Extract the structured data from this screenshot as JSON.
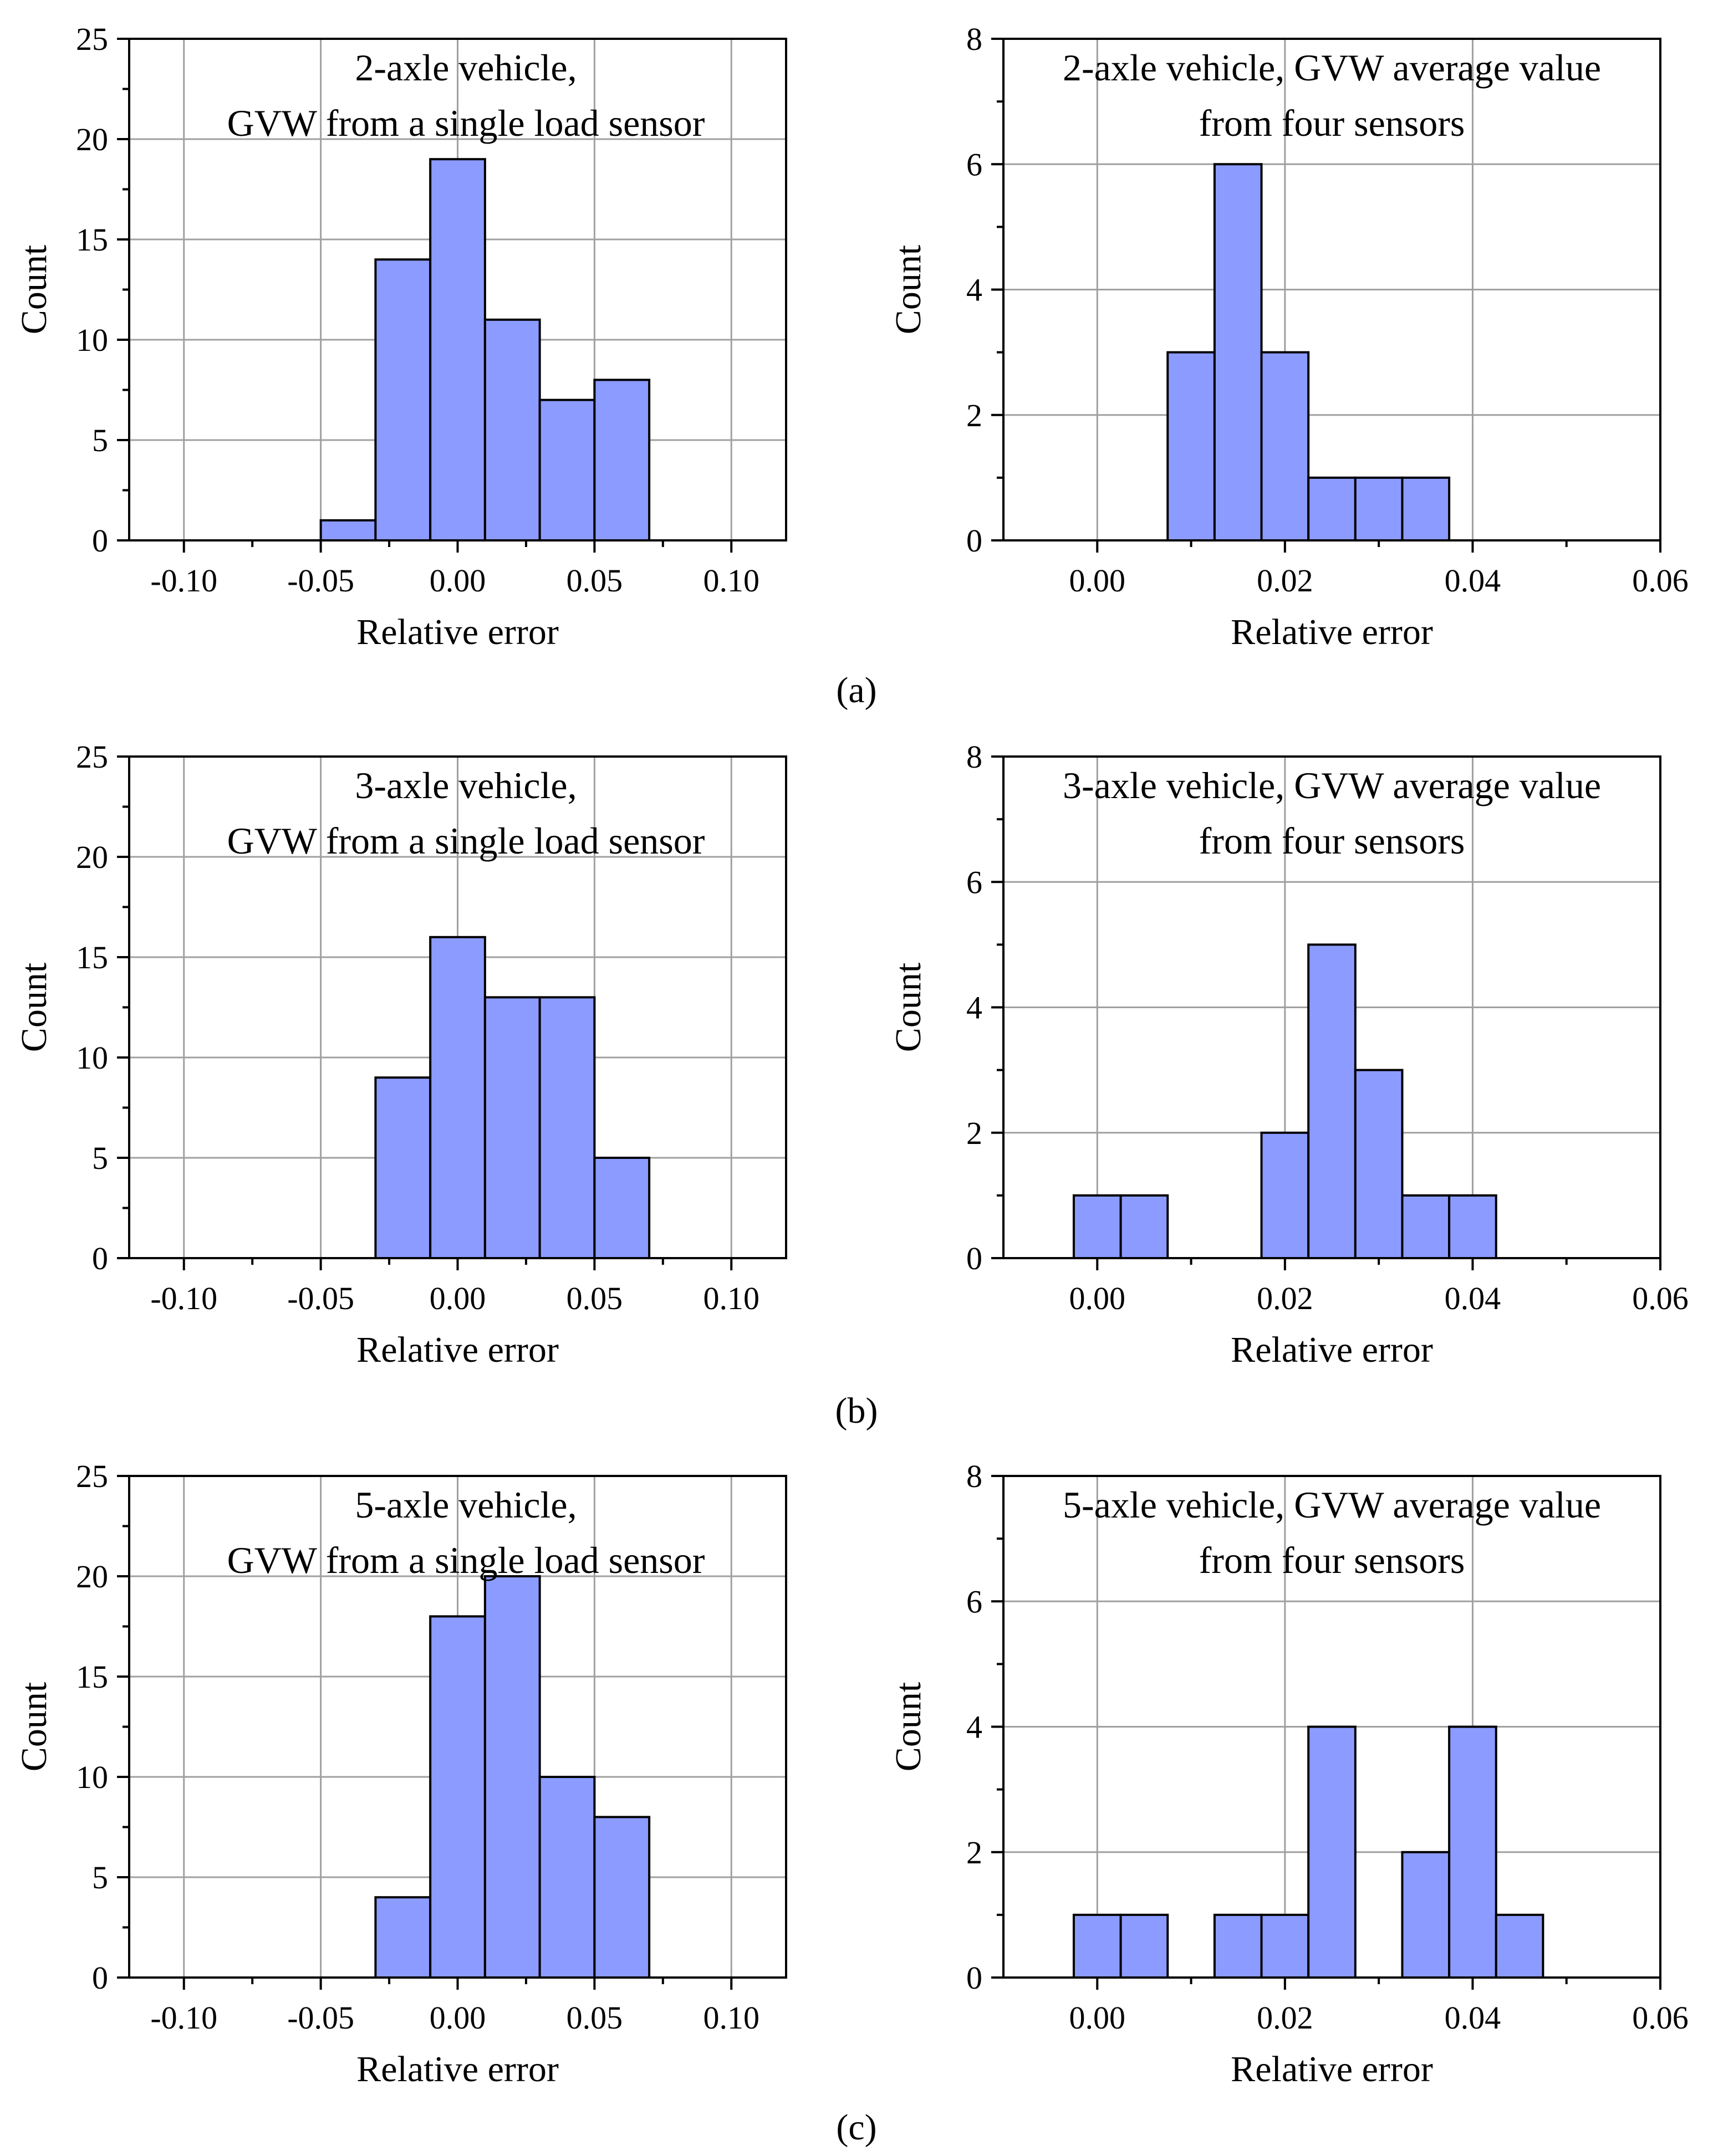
{
  "chart_data": [
    {
      "type": "bar",
      "panel": "a",
      "annotation_lines": [
        "2-axle vehicle,",
        "GVW from a single load sensor"
      ],
      "xlabel": "Relative error",
      "ylabel": "Count",
      "xlim": [
        -0.12,
        0.12
      ],
      "ylim": [
        0,
        25
      ],
      "xticks": [
        -0.1,
        -0.05,
        0.0,
        0.05,
        0.1
      ],
      "xtick_labels": [
        "-0.10",
        "-0.05",
        "0.00",
        "0.05",
        "0.10"
      ],
      "yticks": [
        0,
        5,
        10,
        15,
        20,
        25
      ],
      "ytick_labels": [
        "0",
        "5",
        "10",
        "15",
        "20",
        "25"
      ],
      "grid": true,
      "bin_width": 0.02,
      "bins": [
        {
          "start": -0.05,
          "value": 1
        },
        {
          "start": -0.03,
          "value": 14
        },
        {
          "start": -0.01,
          "value": 19
        },
        {
          "start": 0.01,
          "value": 11
        },
        {
          "start": 0.03,
          "value": 7
        },
        {
          "start": 0.05,
          "value": 8
        }
      ]
    },
    {
      "type": "bar",
      "panel": "a",
      "annotation_lines": [
        "2-axle vehicle, GVW average value",
        "from four sensors"
      ],
      "xlabel": "Relative error",
      "ylabel": "Count",
      "xlim": [
        -0.01,
        0.06
      ],
      "ylim": [
        0,
        8
      ],
      "xticks": [
        0.0,
        0.02,
        0.04,
        0.06
      ],
      "xtick_labels": [
        "0.00",
        "0.02",
        "0.04",
        "0.06"
      ],
      "yticks": [
        0,
        2,
        4,
        6,
        8
      ],
      "ytick_labels": [
        "0",
        "2",
        "4",
        "6",
        "8"
      ],
      "grid": true,
      "bin_width": 0.005,
      "bins": [
        {
          "start": 0.0075,
          "value": 3
        },
        {
          "start": 0.0125,
          "value": 6
        },
        {
          "start": 0.0175,
          "value": 3
        },
        {
          "start": 0.0225,
          "value": 1
        },
        {
          "start": 0.0275,
          "value": 1
        },
        {
          "start": 0.0325,
          "value": 1
        }
      ]
    },
    {
      "type": "bar",
      "panel": "b",
      "annotation_lines": [
        "3-axle vehicle,",
        "GVW from a single load sensor"
      ],
      "xlabel": "Relative error",
      "ylabel": "Count",
      "xlim": [
        -0.12,
        0.12
      ],
      "ylim": [
        0,
        25
      ],
      "xticks": [
        -0.1,
        -0.05,
        0.0,
        0.05,
        0.1
      ],
      "xtick_labels": [
        "-0.10",
        "-0.05",
        "0.00",
        "0.05",
        "0.10"
      ],
      "yticks": [
        0,
        5,
        10,
        15,
        20,
        25
      ],
      "ytick_labels": [
        "0",
        "5",
        "10",
        "15",
        "20",
        "25"
      ],
      "grid": true,
      "bin_width": 0.02,
      "bins": [
        {
          "start": -0.03,
          "value": 9
        },
        {
          "start": -0.01,
          "value": 16
        },
        {
          "start": 0.01,
          "value": 13
        },
        {
          "start": 0.03,
          "value": 13
        },
        {
          "start": 0.05,
          "value": 5
        }
      ]
    },
    {
      "type": "bar",
      "panel": "b",
      "annotation_lines": [
        "3-axle vehicle, GVW average value",
        "from four sensors"
      ],
      "xlabel": "Relative error",
      "ylabel": "Count",
      "xlim": [
        -0.01,
        0.06
      ],
      "ylim": [
        0,
        8
      ],
      "xticks": [
        0.0,
        0.02,
        0.04,
        0.06
      ],
      "xtick_labels": [
        "0.00",
        "0.02",
        "0.04",
        "0.06"
      ],
      "yticks": [
        0,
        2,
        4,
        6,
        8
      ],
      "ytick_labels": [
        "0",
        "2",
        "4",
        "6",
        "8"
      ],
      "grid": true,
      "bin_width": 0.005,
      "bins": [
        {
          "start": -0.0025,
          "value": 1
        },
        {
          "start": 0.0025,
          "value": 1
        },
        {
          "start": 0.0175,
          "value": 2
        },
        {
          "start": 0.0225,
          "value": 5
        },
        {
          "start": 0.0275,
          "value": 3
        },
        {
          "start": 0.0325,
          "value": 1
        },
        {
          "start": 0.0375,
          "value": 1
        }
      ]
    },
    {
      "type": "bar",
      "panel": "c",
      "annotation_lines": [
        "5-axle vehicle,",
        "GVW from a single load sensor"
      ],
      "xlabel": "Relative error",
      "ylabel": "Count",
      "xlim": [
        -0.12,
        0.12
      ],
      "ylim": [
        0,
        25
      ],
      "xticks": [
        -0.1,
        -0.05,
        0.0,
        0.05,
        0.1
      ],
      "xtick_labels": [
        "-0.10",
        "-0.05",
        "0.00",
        "0.05",
        "0.10"
      ],
      "yticks": [
        0,
        5,
        10,
        15,
        20,
        25
      ],
      "ytick_labels": [
        "0",
        "5",
        "10",
        "15",
        "20",
        "25"
      ],
      "grid": true,
      "bin_width": 0.02,
      "bins": [
        {
          "start": -0.03,
          "value": 4
        },
        {
          "start": -0.01,
          "value": 18
        },
        {
          "start": 0.01,
          "value": 20
        },
        {
          "start": 0.03,
          "value": 10
        },
        {
          "start": 0.05,
          "value": 8
        }
      ]
    },
    {
      "type": "bar",
      "panel": "c",
      "annotation_lines": [
        "5-axle vehicle, GVW average value",
        "from four sensors"
      ],
      "xlabel": "Relative error",
      "ylabel": "Count",
      "xlim": [
        -0.01,
        0.06
      ],
      "ylim": [
        0,
        8
      ],
      "xticks": [
        0.0,
        0.02,
        0.04,
        0.06
      ],
      "xtick_labels": [
        "0.00",
        "0.02",
        "0.04",
        "0.06"
      ],
      "yticks": [
        0,
        2,
        4,
        6,
        8
      ],
      "ytick_labels": [
        "0",
        "2",
        "4",
        "6",
        "8"
      ],
      "grid": true,
      "bin_width": 0.005,
      "bins": [
        {
          "start": -0.0025,
          "value": 1
        },
        {
          "start": 0.0025,
          "value": 1
        },
        {
          "start": 0.0125,
          "value": 1
        },
        {
          "start": 0.0175,
          "value": 1
        },
        {
          "start": 0.0225,
          "value": 4
        },
        {
          "start": 0.0325,
          "value": 2
        },
        {
          "start": 0.0375,
          "value": 4
        },
        {
          "start": 0.0425,
          "value": 1
        }
      ]
    }
  ],
  "captions": [
    "(a)",
    "(b)",
    "(c)"
  ],
  "colors": {
    "bar_fill": "#8c9bff",
    "bar_stroke": "#000000",
    "grid": "#a0a0a0",
    "axis": "#000000"
  }
}
